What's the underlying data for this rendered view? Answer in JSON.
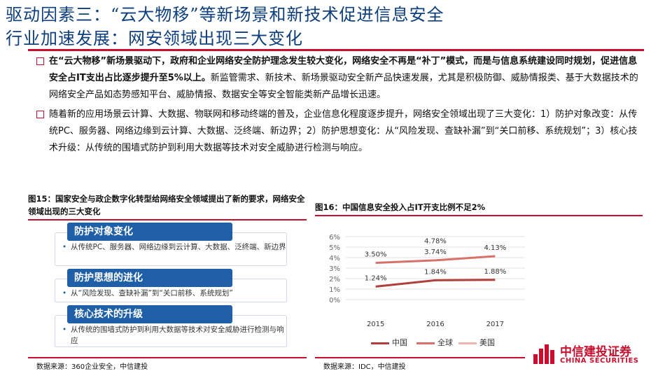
{
  "title": {
    "line1": "驱动因素三：“云大物移”等新场景和新技术促进信息安全",
    "line2": "行业加速发展：网安领域出现三大变化"
  },
  "bullets": [
    {
      "bold": "在“云大物移”新场景驱动下，政府和企业网络安全防护理念发生较大变化，网络安全不再是“补丁”模式，而是与信息系统建设同时规划，促进信息安全占IT支出占比逐步提升至5%以上。",
      "text": "新监管需求、新技术、新场景驱动安全新产品快速发展，尤其是积极防御、威胁情报类、基于大数据技术的网络安全产品如态势感知平台、威胁情报、数据安全等安全智能类新产品增长迅速。"
    },
    {
      "bold": "",
      "text": "随着新的应用场景云计算、大数据、物联网和移动终端的普及，企业信息化程度逐步提升，网络安全领域出现了三大变化：1）防护对象改变：从传统PC、服务器、网络边缘到云计算、大数据、泛终端、新边界；2）防护思想变化：从“风险发现、查缺补漏”到“关口前移、系统规划”；3）核心技术升级：从传统的围墙式防护到利用大数据等技术对安全威胁进行检测与响应。"
    }
  ],
  "fig15": {
    "title": "图15：国家安全与政企数字化转型给网络安全领域提出了新的要求，网络安全领域出现的三大变化",
    "blocks": [
      {
        "title": "防护对象变化",
        "items": [
          "从传统PC、服务器、网络边缘到云计算、大数据、泛终端、新边界"
        ]
      },
      {
        "title": "防护思想的进化",
        "items": [
          "从“风险发现、查缺补漏”到“关口前移、系统规划”"
        ]
      },
      {
        "title": "核心技术的升级",
        "items": [
          "从传统的围墙式防护到利用大数据等技术对安全威胁进行检测与响应"
        ]
      }
    ],
    "source": "数据来源：360企业安全，中信建投"
  },
  "fig16": {
    "title": "图16：中国信息安全投入占IT开支比例不足2%",
    "source": "数据来源：IDC，中信建投"
  },
  "chart_data": {
    "type": "line",
    "categories": [
      "2015",
      "2016",
      "2017"
    ],
    "yticks": [
      "0%",
      "1%",
      "2%",
      "3%",
      "4%",
      "5%",
      "6%"
    ],
    "ylim": [
      0,
      6
    ],
    "grid": true,
    "legend_position": "bottom",
    "series": [
      {
        "name": "中国",
        "values": [
          1.24,
          1.84,
          1.88
        ],
        "labels": [
          "1.24%",
          "1.84%",
          "1.88%"
        ],
        "color": "#b0403c"
      },
      {
        "name": "全球",
        "values": [
          3.5,
          3.74,
          4.13
        ],
        "labels": [
          "3.50%",
          "3.74%",
          "4.13%"
        ],
        "color": "#d9706a"
      },
      {
        "name": "美国",
        "values": [
          null,
          4.78,
          null
        ],
        "labels": [
          "",
          "4.78%",
          ""
        ],
        "color": "#f0b4b0"
      }
    ]
  },
  "logo": {
    "cn": "中信建投证券",
    "en": "CHINA SECURITIES",
    "color": "#c8102e"
  }
}
